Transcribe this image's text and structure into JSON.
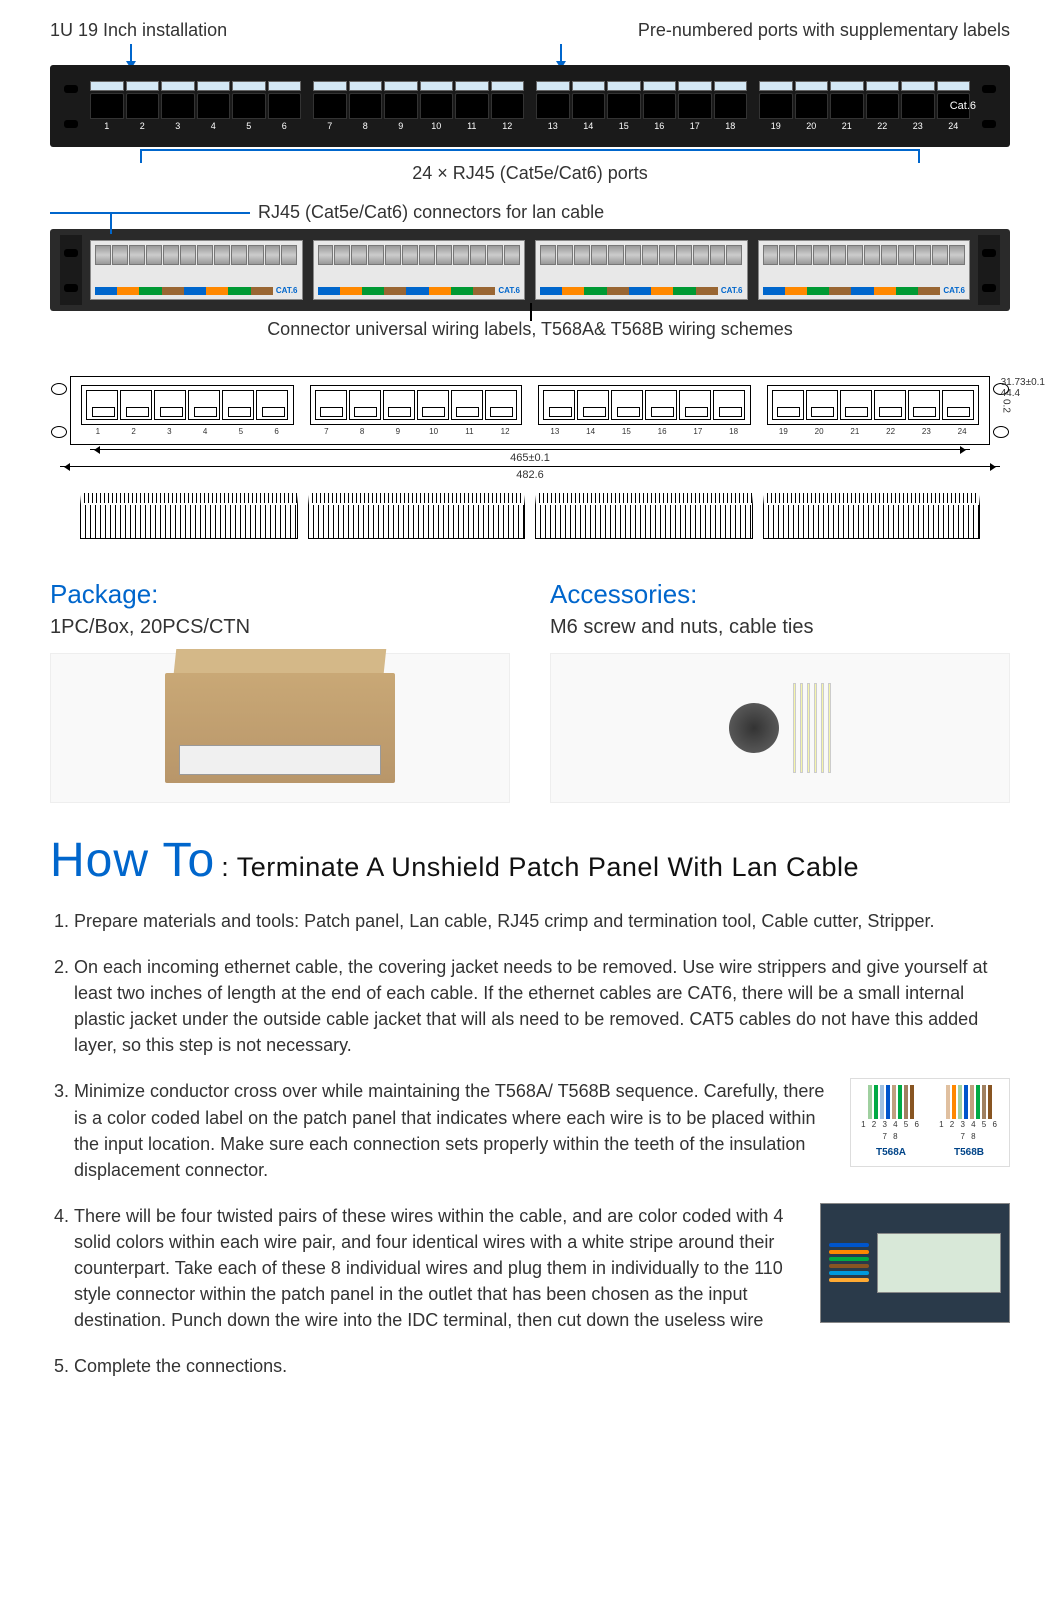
{
  "callouts": {
    "top_left": "1U 19 Inch installation",
    "top_right": "Pre-numbered ports with supplementary labels",
    "center_ports": "24 × RJ45 (Cat5e/Cat6) ports",
    "rear_connectors": "RJ45 (Cat5e/Cat6) connectors for lan cable",
    "wiring_labels": "Connector universal wiring labels, T568A& T568B wiring schemes"
  },
  "front_panel": {
    "cat_label": "Cat.6",
    "port_numbers": [
      [
        "1",
        "2",
        "3",
        "4",
        "5",
        "6"
      ],
      [
        "7",
        "8",
        "9",
        "10",
        "11",
        "12"
      ],
      [
        "13",
        "14",
        "15",
        "16",
        "17",
        "18"
      ],
      [
        "19",
        "20",
        "21",
        "22",
        "23",
        "24"
      ]
    ],
    "label_color": "#d4e8f5",
    "panel_color": "#1a1a1a"
  },
  "rear_panel": {
    "scheme_text": "CAT.6",
    "wire_colors": [
      "#0066cc",
      "#ff8800",
      "#009933",
      "#996633",
      "#0066cc",
      "#ff8800",
      "#009933",
      "#996633"
    ]
  },
  "tech_drawing": {
    "width_inner": "465±0.1",
    "width_outer": "482.6",
    "height1": "31.73±0.1",
    "height2": "44.4",
    "height3": "0.2",
    "port_numbers": [
      [
        "1",
        "2",
        "3",
        "4",
        "5",
        "6"
      ],
      [
        "7",
        "8",
        "9",
        "10",
        "11",
        "12"
      ],
      [
        "13",
        "14",
        "15",
        "16",
        "17",
        "18"
      ],
      [
        "19",
        "20",
        "21",
        "22",
        "23",
        "24"
      ]
    ]
  },
  "package": {
    "title": "Package:",
    "body": "1PC/Box, 20PCS/CTN"
  },
  "accessories": {
    "title": "Accessories:",
    "body": "M6 screw and nuts, cable ties"
  },
  "howto": {
    "big": "How To",
    "sub": ": Terminate A Unshield Patch Panel With Lan Cable",
    "steps": [
      "Prepare materials and tools: Patch panel, Lan cable, RJ45 crimp and termination tool, Cable cutter, Stripper.",
      "On each incoming ethernet cable, the covering jacket needs to be removed. Use wire strippers and give yourself at least two inches of length at the end of each cable.  If the ethernet cables are CAT6, there will be a small internal plastic jacket under the outside cable jacket that will als need to be removed. CAT5 cables do not have this added layer, so this step is not necessary.",
      "Minimize conductor cross over while maintaining the T568A/ T568B sequence.  Carefully, there is a color coded label on the patch panel that indicates where each wire is to be placed within the input location.  Make sure each connection sets properly within the teeth of the insulation displacement connector.",
      "There will be four twisted pairs of these wires within the cable, and are color coded with 4 solid colors within each wire pair, and four identical wires with a white stripe around their counterpart.  Take each of these 8 individual wires and plug them in individually to the 110 style connector within the patch panel in the outlet that has been chosen as the input destination. Punch down the wire into the IDC terminal, then cut down the useless wire",
      "Complete the connections."
    ],
    "scheme_a": {
      "label": "T568A",
      "nums": "1 2 3 4 5 6 7 8",
      "colors": [
        "#a0d0a0",
        "#00aa44",
        "#a0c0e0",
        "#0055cc",
        "#c0a080",
        "#00aa44",
        "#a08060",
        "#885522"
      ]
    },
    "scheme_b": {
      "label": "T568B",
      "nums": "1 2 3 4 5 6 7 8",
      "colors": [
        "#e0c0a0",
        "#ff8800",
        "#a0d0a0",
        "#0055cc",
        "#c0a080",
        "#00aa44",
        "#a08060",
        "#885522"
      ]
    },
    "term_wire_colors": [
      "#0055cc",
      "#ff8800",
      "#00aa44",
      "#885522",
      "#0099dd",
      "#ffaa33"
    ]
  },
  "colors": {
    "blue": "#0066cc",
    "text": "#333333"
  }
}
